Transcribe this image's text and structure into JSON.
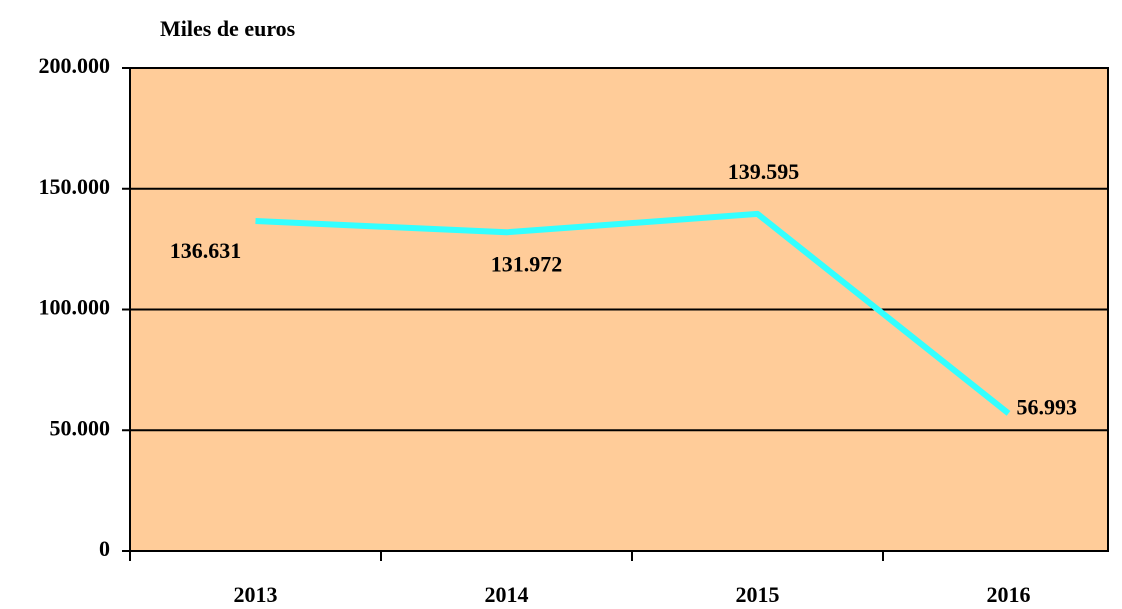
{
  "chart_data": {
    "type": "line",
    "y_axis_label": "Miles de euros",
    "categories": [
      "2013",
      "2014",
      "2015",
      "2016"
    ],
    "series": [
      {
        "name": "Miles de euros",
        "color": "#33ffff",
        "values": [
          136631,
          131972,
          139595,
          56993
        ],
        "value_labels": [
          "136.631",
          "131.972",
          "139.595",
          "56.993"
        ]
      }
    ],
    "ylim": [
      0,
      200000
    ],
    "yticks": [
      0,
      {
        "value": 50000,
        "label": "50.000"
      },
      {
        "value": 100000,
        "label": "100.000"
      },
      {
        "value": 150000,
        "label": "150.000"
      },
      {
        "value": 200000,
        "label": "200.000"
      }
    ],
    "grid": true,
    "plot_background": "#ffcc99"
  }
}
